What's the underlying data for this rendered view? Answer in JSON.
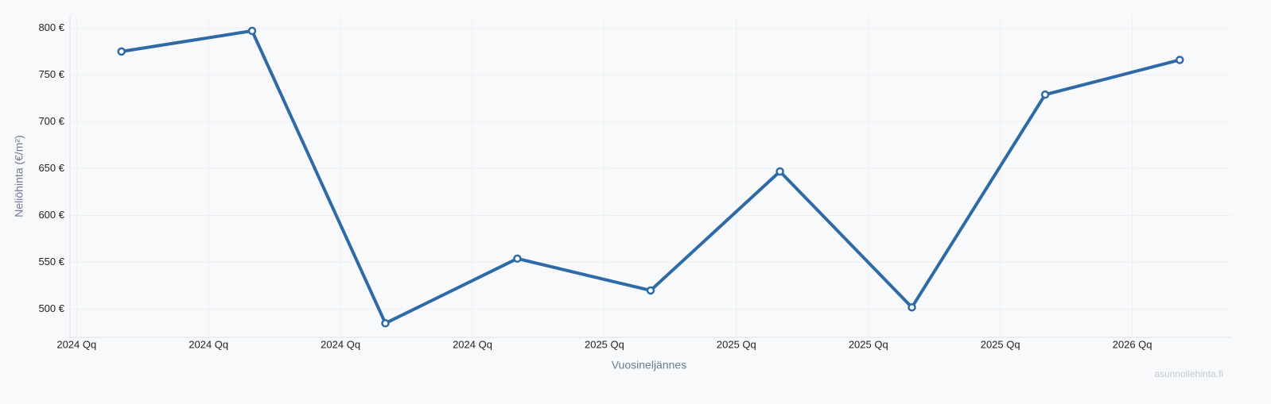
{
  "chart_data": {
    "type": "line",
    "y_label": "Neliöhinta (€/m²)",
    "x_label": "Vuosineljännes",
    "source": "asunnollehinta.fi",
    "x": [
      0.34,
      1.33,
      2.34,
      3.34,
      4.35,
      5.33,
      6.33,
      7.34,
      8.36
    ],
    "series": [
      {
        "name": "Neliöhinta",
        "color": "#2f6aa6",
        "values": [
          775,
          797,
          485,
          554,
          520,
          647,
          502,
          729,
          766
        ]
      }
    ],
    "xlim": [
      -0.05,
      8.75
    ],
    "xticks": [
      {
        "value": 0,
        "label": "2024 Qq"
      },
      {
        "value": 1,
        "label": "2024 Qq"
      },
      {
        "value": 2,
        "label": "2024 Qq"
      },
      {
        "value": 3,
        "label": "2024 Qq"
      },
      {
        "value": 4,
        "label": "2025 Qq"
      },
      {
        "value": 5,
        "label": "2025 Qq"
      },
      {
        "value": 6,
        "label": "2025 Qq"
      },
      {
        "value": 7,
        "label": "2025 Qq"
      },
      {
        "value": 8,
        "label": "2026 Qq"
      }
    ],
    "ylim": [
      470,
      813
    ],
    "yticks": [
      {
        "value": 500,
        "label": "500 €"
      },
      {
        "value": 550,
        "label": "550 €"
      },
      {
        "value": 600,
        "label": "600 €"
      },
      {
        "value": 650,
        "label": "650 €"
      },
      {
        "value": 700,
        "label": "700 €"
      },
      {
        "value": 750,
        "label": "750 €"
      },
      {
        "value": 800,
        "label": "800 €"
      }
    ],
    "grid": true
  }
}
